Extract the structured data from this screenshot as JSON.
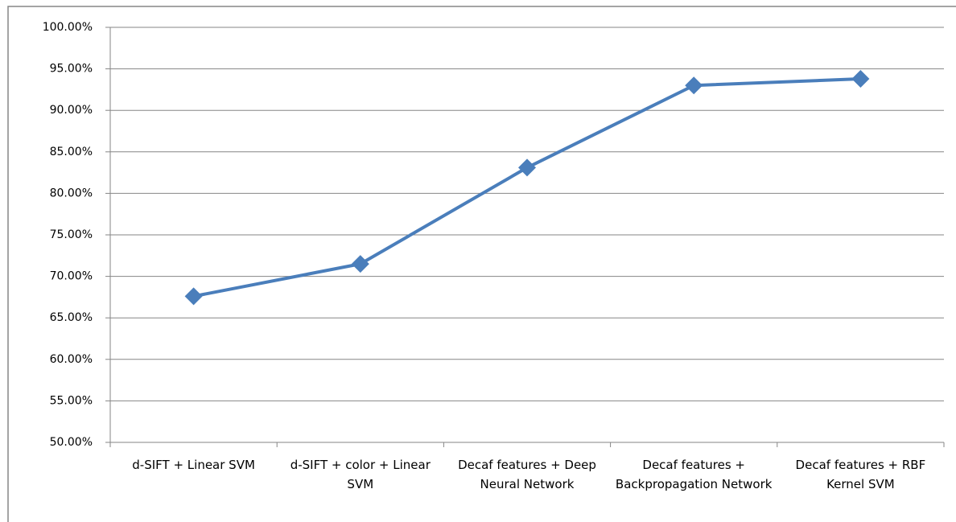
{
  "chart_data": {
    "type": "line",
    "categories": [
      "d-SIFT + Linear SVM",
      "d-SIFT + color + Linear SVM",
      "Decaf features + Deep Neural Network",
      "Decaf features + Backpropagation Network",
      "Decaf features + RBF Kernel SVM"
    ],
    "series": [
      {
        "color": "#4a7ebb",
        "values": [
          67.6,
          71.5,
          83.1,
          93.0,
          93.8
        ]
      }
    ],
    "ylim": [
      50,
      100
    ],
    "yticks": [
      {
        "value": 50,
        "label": "50.00%"
      },
      {
        "value": 55,
        "label": "55.00%"
      },
      {
        "value": 60,
        "label": "60.00%"
      },
      {
        "value": 65,
        "label": "65.00%"
      },
      {
        "value": 70,
        "label": "70.00%"
      },
      {
        "value": 75,
        "label": "75.00%"
      },
      {
        "value": 80,
        "label": "80.00%"
      },
      {
        "value": 85,
        "label": "85.00%"
      },
      {
        "value": 90,
        "label": "90.00%"
      },
      {
        "value": 95,
        "label": "95.00%"
      },
      {
        "value": 100,
        "label": "100.00%"
      }
    ],
    "grid": true
  }
}
